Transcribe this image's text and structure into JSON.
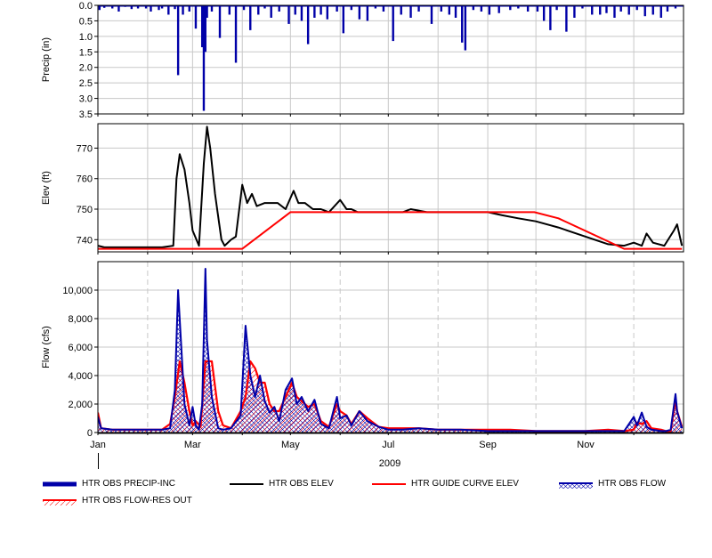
{
  "chart_data": [
    {
      "type": "bar",
      "ylabel": "Precip (in)",
      "ylim": [
        0.0,
        3.5
      ],
      "y_inverted": true,
      "yticks": [
        "0.0",
        "0.5",
        "1.0",
        "1.5",
        "2.0",
        "2.5",
        "3.0",
        "3.5"
      ],
      "grid": true,
      "series": [
        {
          "name": "HTR OBS PRECIP-INC",
          "color": "#0000a8",
          "x": [
            "2009-01-02",
            "2009-01-05",
            "2009-01-10",
            "2009-01-14",
            "2009-01-18",
            "2009-01-22",
            "2009-01-26",
            "2009-01-31",
            "2009-02-03",
            "2009-02-08",
            "2009-02-10",
            "2009-02-14",
            "2009-02-18",
            "2009-02-20",
            "2009-02-23",
            "2009-02-27",
            "2009-03-03",
            "2009-03-07",
            "2009-03-08",
            "2009-03-09",
            "2009-03-10",
            "2009-03-13",
            "2009-03-18",
            "2009-03-24",
            "2009-03-28",
            "2009-04-02",
            "2009-04-06",
            "2009-04-11",
            "2009-04-15",
            "2009-04-19",
            "2009-04-24",
            "2009-04-30",
            "2009-05-04",
            "2009-05-08",
            "2009-05-12",
            "2009-05-16",
            "2009-05-20",
            "2009-05-24",
            "2009-05-30",
            "2009-06-03",
            "2009-06-08",
            "2009-06-13",
            "2009-06-18",
            "2009-06-23",
            "2009-06-28",
            "2009-07-04",
            "2009-07-09",
            "2009-07-15",
            "2009-07-20",
            "2009-07-28",
            "2009-08-03",
            "2009-08-08",
            "2009-08-12",
            "2009-08-16",
            "2009-08-18",
            "2009-08-23",
            "2009-08-28",
            "2009-09-02",
            "2009-09-08",
            "2009-09-15",
            "2009-09-20",
            "2009-09-26",
            "2009-10-02",
            "2009-10-06",
            "2009-10-10",
            "2009-10-14",
            "2009-10-20",
            "2009-10-25",
            "2009-10-30",
            "2009-11-05",
            "2009-11-10",
            "2009-11-14",
            "2009-11-19",
            "2009-11-23",
            "2009-11-28",
            "2009-12-03",
            "2009-12-08",
            "2009-12-13",
            "2009-12-18",
            "2009-12-22",
            "2009-12-27"
          ],
          "values": [
            0.15,
            0.08,
            0.1,
            0.2,
            0.05,
            0.12,
            0.1,
            0.1,
            0.2,
            0.15,
            0.1,
            0.3,
            0.12,
            2.25,
            0.3,
            0.2,
            0.75,
            1.35,
            3.4,
            1.5,
            0.4,
            0.2,
            1.05,
            0.3,
            1.85,
            0.15,
            0.8,
            0.3,
            0.1,
            0.4,
            0.2,
            0.6,
            0.3,
            0.5,
            1.25,
            0.4,
            0.3,
            0.45,
            0.2,
            0.9,
            0.15,
            0.45,
            0.5,
            0.1,
            0.2,
            1.15,
            0.3,
            0.4,
            0.2,
            0.6,
            0.2,
            0.3,
            0.4,
            1.2,
            1.45,
            0.15,
            0.2,
            0.3,
            0.25,
            0.15,
            0.1,
            0.2,
            0.2,
            0.5,
            0.8,
            0.15,
            0.85,
            0.4,
            0.1,
            0.3,
            0.3,
            0.25,
            0.4,
            0.2,
            0.3,
            0.15,
            0.35,
            0.3,
            0.4,
            0.2,
            0.1
          ]
        }
      ]
    },
    {
      "type": "line",
      "ylabel": "Elev (ft)",
      "ylim": [
        736,
        778
      ],
      "yticks": [
        "740",
        "750",
        "760",
        "770"
      ],
      "grid": true,
      "series": [
        {
          "name": "HTR OBS ELEV",
          "color": "#000000",
          "x": [
            "2009-01-01",
            "2009-01-05",
            "2009-01-10",
            "2009-01-20",
            "2009-02-01",
            "2009-02-10",
            "2009-02-17",
            "2009-02-19",
            "2009-02-21",
            "2009-02-24",
            "2009-02-27",
            "2009-03-01",
            "2009-03-05",
            "2009-03-08",
            "2009-03-10",
            "2009-03-12",
            "2009-03-15",
            "2009-03-19",
            "2009-03-21",
            "2009-03-25",
            "2009-03-28",
            "2009-04-01",
            "2009-04-04",
            "2009-04-07",
            "2009-04-10",
            "2009-04-15",
            "2009-04-18",
            "2009-04-23",
            "2009-04-28",
            "2009-05-03",
            "2009-05-06",
            "2009-05-10",
            "2009-05-15",
            "2009-05-20",
            "2009-05-25",
            "2009-06-01",
            "2009-06-05",
            "2009-06-08",
            "2009-06-12",
            "2009-06-18",
            "2009-06-25",
            "2009-07-01",
            "2009-07-10",
            "2009-07-15",
            "2009-07-25",
            "2009-08-01",
            "2009-08-15",
            "2009-09-01",
            "2009-09-10",
            "2009-09-20",
            "2009-10-01",
            "2009-10-15",
            "2009-11-01",
            "2009-11-15",
            "2009-11-25",
            "2009-12-01",
            "2009-12-06",
            "2009-12-09",
            "2009-12-13",
            "2009-12-20",
            "2009-12-26",
            "2009-12-28",
            "2009-12-31"
          ],
          "values": [
            738,
            737.5,
            737.5,
            737.5,
            737.5,
            737.5,
            738,
            760,
            768,
            763,
            752,
            743,
            738,
            765,
            777,
            770,
            755,
            740,
            738,
            740,
            741,
            758,
            752,
            755,
            751,
            752,
            752,
            752,
            750,
            756,
            752,
            752,
            750,
            750,
            749,
            753,
            750,
            750,
            749,
            749,
            749,
            749,
            749,
            750,
            749,
            749,
            749,
            749,
            748,
            747,
            746,
            744,
            741,
            738.5,
            738,
            739,
            738,
            742,
            739,
            738,
            743,
            745,
            738
          ]
        },
        {
          "name": "HTR GUIDE CURVE ELEV",
          "color": "#ff0000",
          "x": [
            "2009-01-01",
            "2009-04-01",
            "2009-05-01",
            "2009-09-30",
            "2009-10-15",
            "2009-11-25",
            "2009-12-31"
          ],
          "values": [
            737,
            737,
            749,
            749,
            747,
            737,
            737
          ]
        }
      ]
    },
    {
      "type": "area",
      "ylabel": "Flow (cfs)",
      "xlabel": "2009",
      "ylim": [
        0,
        12000
      ],
      "yticks": [
        "0",
        "2,000",
        "4,000",
        "6,000",
        "8,000",
        "10,000"
      ],
      "xticks": [
        "Jan",
        "Mar",
        "May",
        "Jul",
        "Sep",
        "Nov"
      ],
      "grid": true,
      "series": [
        {
          "name": "HTR OBS FLOW",
          "color": "#0000a8",
          "x": [
            "2009-01-01",
            "2009-01-03",
            "2009-01-10",
            "2009-01-20",
            "2009-02-01",
            "2009-02-10",
            "2009-02-15",
            "2009-02-18",
            "2009-02-20",
            "2009-02-22",
            "2009-02-24",
            "2009-02-27",
            "2009-03-01",
            "2009-03-03",
            "2009-03-05",
            "2009-03-07",
            "2009-03-09",
            "2009-03-10",
            "2009-03-13",
            "2009-03-17",
            "2009-03-20",
            "2009-03-25",
            "2009-03-31",
            "2009-04-03",
            "2009-04-06",
            "2009-04-09",
            "2009-04-12",
            "2009-04-15",
            "2009-04-18",
            "2009-04-21",
            "2009-04-24",
            "2009-04-28",
            "2009-05-02",
            "2009-05-05",
            "2009-05-08",
            "2009-05-12",
            "2009-05-16",
            "2009-05-20",
            "2009-05-25",
            "2009-05-30",
            "2009-06-01",
            "2009-06-05",
            "2009-06-08",
            "2009-06-13",
            "2009-06-18",
            "2009-06-25",
            "2009-07-01",
            "2009-07-10",
            "2009-07-20",
            "2009-08-01",
            "2009-08-15",
            "2009-09-01",
            "2009-09-15",
            "2009-10-01",
            "2009-10-15",
            "2009-11-01",
            "2009-11-15",
            "2009-11-25",
            "2009-12-01",
            "2009-12-03",
            "2009-12-06",
            "2009-12-09",
            "2009-12-12",
            "2009-12-18",
            "2009-12-21",
            "2009-12-24",
            "2009-12-27",
            "2009-12-28",
            "2009-12-31"
          ],
          "values": [
            1100,
            300,
            200,
            200,
            200,
            200,
            300,
            3000,
            10000,
            6000,
            2000,
            500,
            1800,
            500,
            200,
            2000,
            11500,
            6500,
            2500,
            300,
            200,
            300,
            1200,
            7500,
            4000,
            2500,
            4000,
            2200,
            1400,
            1800,
            800,
            3000,
            3800,
            2000,
            2500,
            1500,
            2300,
            600,
            300,
            2500,
            1000,
            1200,
            500,
            1500,
            800,
            400,
            200,
            200,
            300,
            200,
            200,
            100,
            100,
            100,
            100,
            100,
            100,
            100,
            1100,
            500,
            1400,
            400,
            200,
            100,
            100,
            200,
            2700,
            1500,
            300
          ]
        },
        {
          "name": "HTR OBS FLOW-RES OUT",
          "color": "#ff0000",
          "x": [
            "2009-01-01",
            "2009-01-03",
            "2009-01-10",
            "2009-01-20",
            "2009-02-01",
            "2009-02-10",
            "2009-02-15",
            "2009-02-18",
            "2009-02-21",
            "2009-02-24",
            "2009-02-27",
            "2009-03-01",
            "2009-03-03",
            "2009-03-06",
            "2009-03-09",
            "2009-03-13",
            "2009-03-17",
            "2009-03-20",
            "2009-03-25",
            "2009-03-31",
            "2009-04-03",
            "2009-04-06",
            "2009-04-09",
            "2009-04-12",
            "2009-04-15",
            "2009-04-18",
            "2009-04-21",
            "2009-04-24",
            "2009-04-28",
            "2009-05-02",
            "2009-05-05",
            "2009-05-08",
            "2009-05-12",
            "2009-05-16",
            "2009-05-20",
            "2009-05-25",
            "2009-05-30",
            "2009-06-01",
            "2009-06-05",
            "2009-06-08",
            "2009-06-13",
            "2009-06-18",
            "2009-06-25",
            "2009-07-01",
            "2009-07-10",
            "2009-07-20",
            "2009-08-01",
            "2009-08-15",
            "2009-09-01",
            "2009-09-15",
            "2009-10-01",
            "2009-10-15",
            "2009-11-01",
            "2009-11-15",
            "2009-11-25",
            "2009-12-01",
            "2009-12-03",
            "2009-12-06",
            "2009-12-09",
            "2009-12-12",
            "2009-12-18",
            "2009-12-21",
            "2009-12-24",
            "2009-12-27",
            "2009-12-28",
            "2009-12-31"
          ],
          "values": [
            1400,
            300,
            200,
            200,
            200,
            200,
            600,
            2500,
            5000,
            3500,
            1500,
            500,
            800,
            400,
            5000,
            5000,
            1500,
            500,
            300,
            1500,
            2500,
            5000,
            4500,
            3500,
            3500,
            2000,
            1500,
            1500,
            2500,
            3500,
            2500,
            2200,
            1800,
            2000,
            800,
            400,
            2000,
            1500,
            1200,
            600,
            1500,
            1000,
            400,
            300,
            300,
            300,
            200,
            200,
            200,
            200,
            100,
            100,
            100,
            200,
            100,
            200,
            700,
            600,
            800,
            300,
            200,
            100,
            100,
            2300,
            1500,
            400
          ]
        }
      ]
    }
  ],
  "legend": [
    {
      "label": "HTR OBS PRECIP-INC",
      "style": "thick-bar",
      "color": "#0000a8"
    },
    {
      "label": "HTR OBS ELEV",
      "style": "line",
      "color": "#000000"
    },
    {
      "label": "HTR GUIDE CURVE ELEV",
      "style": "line",
      "color": "#ff0000"
    },
    {
      "label": "HTR OBS FLOW",
      "style": "hatch",
      "color": "#0000a8"
    },
    {
      "label": "HTR OBS FLOW-RES OUT",
      "style": "hatch",
      "color": "#ff0000"
    }
  ]
}
